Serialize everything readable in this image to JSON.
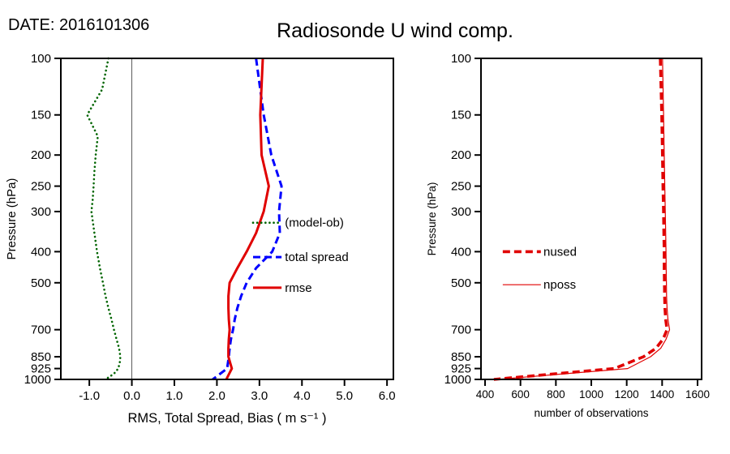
{
  "header": {
    "date_label": "DATE: 2016101306",
    "title": "Radiosonde U wind comp."
  },
  "chart_data": [
    {
      "type": "line",
      "id": "errors-panel",
      "xlabel": "RMS, Total Spread, Bias ( m s⁻¹ )",
      "ylabel": "Pressure (hPa)",
      "xlim": [
        -1.67,
        6.15
      ],
      "ylim": [
        100,
        1000
      ],
      "yscale": "log-pressure-inverted",
      "grid": false,
      "zero_line": true,
      "xticks": [
        -1.0,
        0.0,
        1.0,
        2.0,
        3.0,
        4.0,
        5.0,
        6.0
      ],
      "xtick_labels": [
        "-1.0",
        "0.0",
        "1.0",
        "2.0",
        "3.0",
        "4.0",
        "5.0",
        "6.0"
      ],
      "yticks": [
        100,
        150,
        200,
        250,
        300,
        400,
        500,
        700,
        850,
        925,
        1000
      ],
      "ytick_labels": [
        "100",
        "150",
        "200",
        "250",
        "300",
        "400",
        "500",
        "700",
        "850",
        "925",
        "1000"
      ],
      "series": [
        {
          "name": "(model-ob)",
          "color": "#006400",
          "style": "dotted",
          "width": 2.6,
          "pressure": [
            100,
            125,
            150,
            175,
            200,
            225,
            250,
            275,
            300,
            350,
            400,
            450,
            500,
            550,
            600,
            650,
            700,
            750,
            800,
            850,
            880,
            925,
            960,
            1000
          ],
          "values": [
            -0.55,
            -0.7,
            -1.05,
            -0.8,
            -0.85,
            -0.88,
            -0.9,
            -0.92,
            -0.95,
            -0.88,
            -0.82,
            -0.75,
            -0.68,
            -0.62,
            -0.55,
            -0.48,
            -0.42,
            -0.36,
            -0.3,
            -0.27,
            -0.28,
            -0.32,
            -0.42,
            -0.62
          ]
        },
        {
          "name": "total spread",
          "color": "#0000ff",
          "style": "dashed",
          "width": 3,
          "pressure": [
            100,
            150,
            200,
            250,
            300,
            350,
            400,
            450,
            500,
            550,
            600,
            650,
            700,
            750,
            800,
            850,
            925,
            1000
          ],
          "values": [
            2.92,
            3.1,
            3.28,
            3.52,
            3.46,
            3.48,
            3.3,
            2.92,
            2.7,
            2.57,
            2.48,
            2.42,
            2.38,
            2.33,
            2.3,
            2.28,
            2.24,
            1.9
          ]
        },
        {
          "name": "rmse",
          "color": "#e00000",
          "style": "solid",
          "width": 3,
          "pressure": [
            100,
            150,
            200,
            250,
            300,
            350,
            400,
            450,
            500,
            550,
            600,
            650,
            700,
            750,
            800,
            850,
            925,
            1000
          ],
          "values": [
            3.08,
            3.02,
            3.05,
            3.22,
            3.1,
            2.92,
            2.7,
            2.48,
            2.3,
            2.27,
            2.27,
            2.28,
            2.3,
            2.28,
            2.27,
            2.27,
            2.35,
            2.22
          ]
        }
      ],
      "legend": {
        "position": "inside-right",
        "entries": [
          {
            "label": "(model-ob)",
            "series": 0,
            "pressure": 325,
            "sample_x": [
              2.85,
              3.52
            ],
            "text_x": 3.6
          },
          {
            "label": "total spread",
            "series": 1,
            "pressure": 416,
            "sample_x": [
              2.85,
              3.52
            ],
            "text_x": 3.6
          },
          {
            "label": "rmse",
            "series": 2,
            "pressure": 518,
            "sample_x": [
              2.85,
              3.52
            ],
            "text_x": 3.6
          }
        ]
      }
    },
    {
      "type": "line",
      "id": "obs-count-panel",
      "xlabel": "number of observations",
      "ylabel": "Pressure (hPa)",
      "xlim": [
        377,
        1623
      ],
      "ylim": [
        100,
        1000
      ],
      "yscale": "log-pressure-inverted",
      "grid": false,
      "zero_line": false,
      "xticks": [
        400,
        600,
        800,
        1000,
        1200,
        1400,
        1600
      ],
      "xtick_labels": [
        "400",
        "600",
        "800",
        "1000",
        "1200",
        "1400",
        "1600"
      ],
      "yticks": [
        100,
        150,
        200,
        250,
        300,
        400,
        500,
        700,
        850,
        925,
        1000
      ],
      "ytick_labels": [
        "100",
        "150",
        "200",
        "250",
        "300",
        "400",
        "500",
        "700",
        "850",
        "925",
        "1000"
      ],
      "series": [
        {
          "name": "nposs",
          "color": "#e00000",
          "style": "solid",
          "width": 1.2,
          "pressure": [
            100,
            150,
            200,
            250,
            300,
            350,
            400,
            450,
            500,
            550,
            600,
            650,
            700,
            750,
            800,
            850,
            925,
            960,
            1000
          ],
          "values": [
            1402,
            1408,
            1412,
            1415,
            1418,
            1420,
            1422,
            1423,
            1424,
            1425,
            1428,
            1433,
            1442,
            1422,
            1392,
            1335,
            1205,
            850,
            472
          ]
        },
        {
          "name": "nused",
          "color": "#e00000",
          "style": "dashed",
          "width": 3.6,
          "pressure": [
            100,
            150,
            200,
            250,
            300,
            350,
            400,
            450,
            500,
            550,
            600,
            650,
            700,
            750,
            800,
            850,
            925,
            960,
            1000
          ],
          "values": [
            1390,
            1398,
            1402,
            1405,
            1408,
            1410,
            1412,
            1412,
            1413,
            1414,
            1416,
            1420,
            1428,
            1405,
            1365,
            1295,
            1130,
            800,
            450
          ]
        }
      ],
      "legend": {
        "position": "inside-left",
        "entries": [
          {
            "label": "nused",
            "series": 1,
            "pressure": 400,
            "sample_x": [
              500,
              715
            ],
            "text_x": 730
          },
          {
            "label": "nposs",
            "series": 0,
            "pressure": 507,
            "sample_x": [
              500,
              715
            ],
            "text_x": 730
          }
        ]
      }
    }
  ]
}
